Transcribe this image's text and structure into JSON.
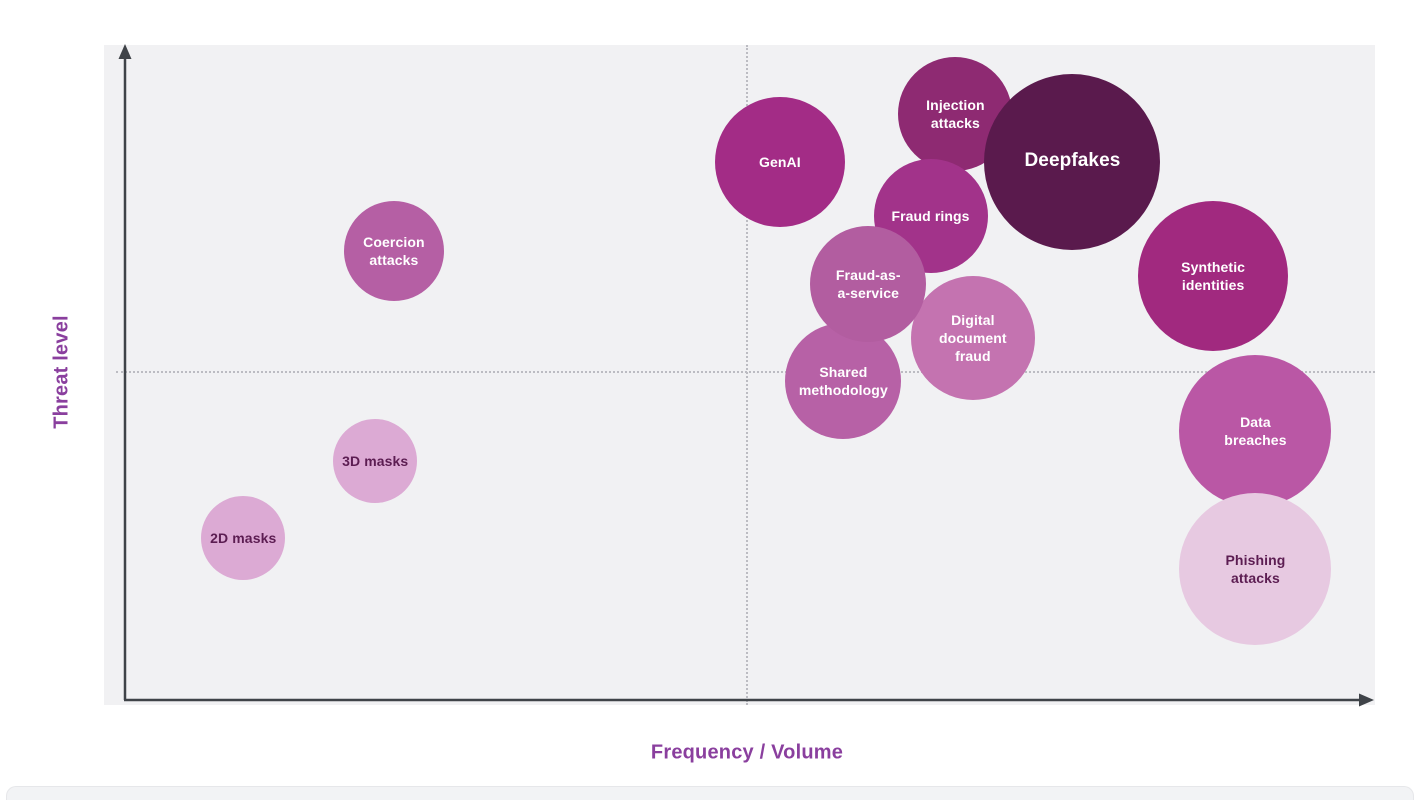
{
  "chart_data": {
    "type": "scatter",
    "subtype": "bubble",
    "title": "",
    "xlabel": "Frequency / Volume",
    "ylabel": "Threat level",
    "axis_label_color": "#8a3f9e",
    "axis_color": "#3f4348",
    "plot_background": "#f1f1f3",
    "grid": "off",
    "quadrant_lines": {
      "x": 50,
      "y": 50.5,
      "style": "dotted",
      "color": "#bcbcc2"
    },
    "x_range": [
      0,
      100
    ],
    "y_range": [
      0,
      100
    ],
    "legend": "none",
    "bubbles": [
      {
        "label": "Injection attacks",
        "lines": [
          "Injection",
          "attacks"
        ],
        "x": 66.7,
        "y": 90.2,
        "r": 57,
        "color": "#8e2a72",
        "text_color": "#ffffff",
        "font_size": 14
      },
      {
        "label": "GenAI",
        "lines": [
          "GenAI"
        ],
        "x": 52.6,
        "y": 82.8,
        "r": 65,
        "color": "#a32c86",
        "text_color": "#ffffff",
        "font_size": 14
      },
      {
        "label": "Fraud rings",
        "lines": [
          "Fraud rings"
        ],
        "x": 64.7,
        "y": 74.5,
        "r": 57,
        "color": "#a2338a",
        "text_color": "#ffffff",
        "font_size": 14
      },
      {
        "label": "Deepfakes",
        "lines": [
          "Deepfakes"
        ],
        "x": 76.1,
        "y": 82.8,
        "r": 88,
        "color": "#5a1a4d",
        "text_color": "#ffffff",
        "font_size": 19
      },
      {
        "label": "Digital document fraud",
        "lines": [
          "Digital",
          "document",
          "fraud"
        ],
        "x": 68.1,
        "y": 55.7,
        "r": 62,
        "color": "#c473b0",
        "text_color": "#ffffff",
        "font_size": 14
      },
      {
        "label": "Shared methodology",
        "lines": [
          "Shared",
          "methodology"
        ],
        "x": 57.7,
        "y": 49.1,
        "r": 58,
        "color": "#b761a6",
        "text_color": "#ffffff",
        "font_size": 14
      },
      {
        "label": "Fraud-as-a-service",
        "lines": [
          "Fraud-as-",
          "a-service"
        ],
        "x": 59.7,
        "y": 64.0,
        "r": 58,
        "color": "#b25da0",
        "text_color": "#ffffff",
        "font_size": 14
      },
      {
        "label": "Coercion attacks",
        "lines": [
          "Coercion",
          "attacks"
        ],
        "x": 21.6,
        "y": 69.1,
        "r": 50,
        "color": "#b55fa4",
        "text_color": "#ffffff",
        "font_size": 14
      },
      {
        "label": "Synthetic identities",
        "lines": [
          "Synthetic",
          "identities"
        ],
        "x": 87.4,
        "y": 65.2,
        "r": 75,
        "color": "#a1297f",
        "text_color": "#ffffff",
        "font_size": 14
      },
      {
        "label": "Data breaches",
        "lines": [
          "Data",
          "breaches"
        ],
        "x": 90.8,
        "y": 41.4,
        "r": 76,
        "color": "#ba57a5",
        "text_color": "#ffffff",
        "font_size": 14
      },
      {
        "label": "Phishing attacks",
        "lines": [
          "Phishing",
          "attacks"
        ],
        "x": 90.8,
        "y": 20.2,
        "r": 76,
        "color": "#e7c9e1",
        "text_color": "#5c1d52",
        "font_size": 14
      },
      {
        "label": "3D masks",
        "lines": [
          "3D masks"
        ],
        "x": 20.1,
        "y": 36.8,
        "r": 42,
        "color": "#dcaad4",
        "text_color": "#5c1d52",
        "font_size": 14
      },
      {
        "label": "2D masks",
        "lines": [
          "2D masks"
        ],
        "x": 9.5,
        "y": 24.9,
        "r": 42,
        "color": "#dcaad4",
        "text_color": "#5c1d52",
        "font_size": 14
      }
    ]
  }
}
